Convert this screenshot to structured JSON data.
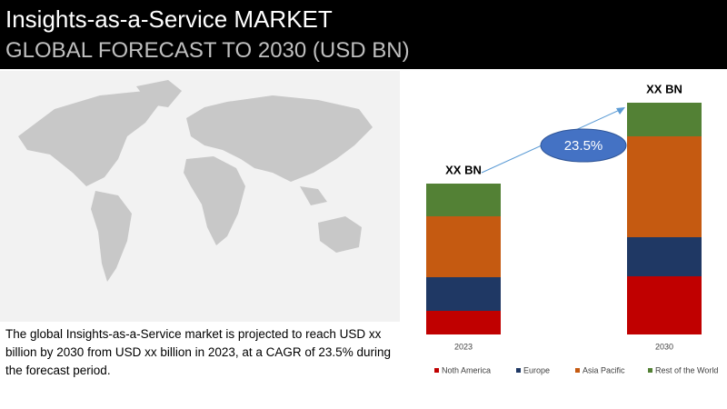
{
  "header": {
    "title": "Insights-as-a-Service MARKET",
    "subtitle": "GLOBAL FORECAST TO 2030 (USD BN)"
  },
  "description": "The global Insights-as-a-Service market is projected to reach USD xx billion by 2030 from USD xx billion in 2023, at a CAGR of  23.5% during the forecast period.",
  "chart_data": {
    "type": "bar",
    "stacked": true,
    "categories": [
      "2023",
      "2030"
    ],
    "total_labels": [
      "XX BN",
      "XX BN"
    ],
    "annotation": "23.5%",
    "ylim": [
      0,
      260
    ],
    "series": [
      {
        "name": "Noth America",
        "color": "#c00000",
        "values": [
          26,
          64
        ]
      },
      {
        "name": "Europe",
        "color": "#1f3864",
        "values": [
          37,
          43
        ]
      },
      {
        "name": "Asia Pacific",
        "color": "#c55a11",
        "values": [
          67,
          111
        ]
      },
      {
        "name": "Rest of the World",
        "color": "#538135",
        "values": [
          36,
          37
        ]
      }
    ]
  }
}
